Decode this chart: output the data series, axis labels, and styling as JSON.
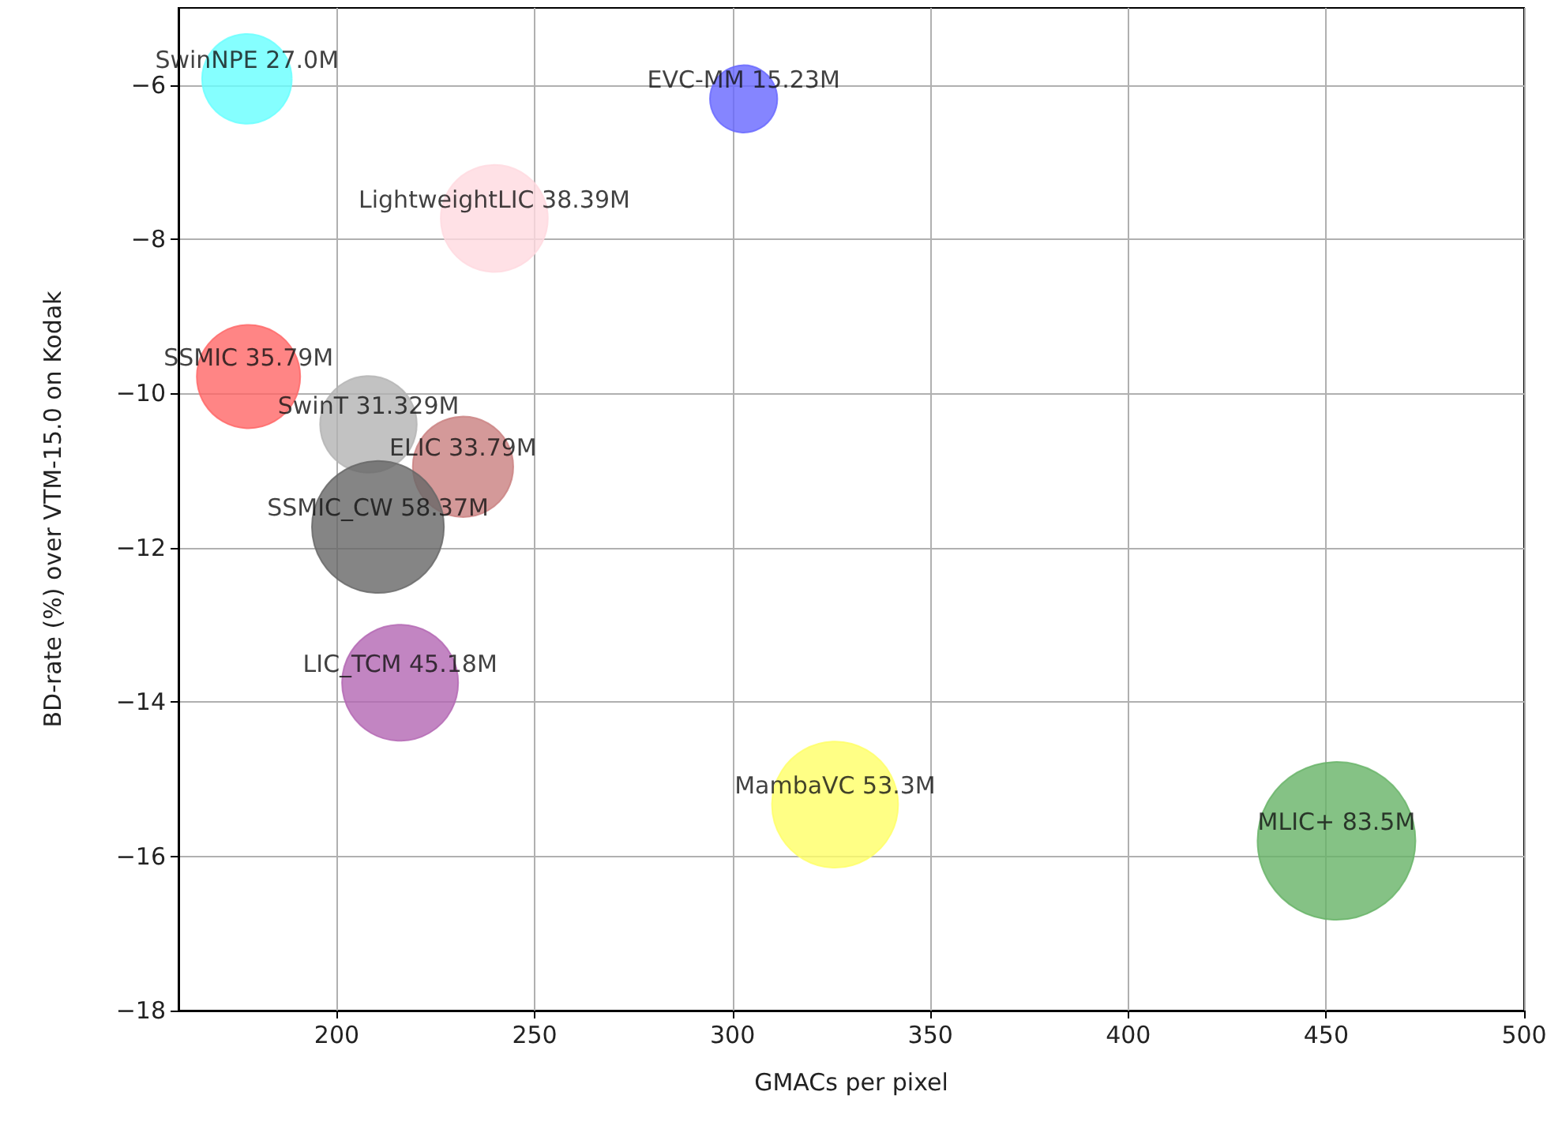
{
  "chart_data": {
    "type": "bubble",
    "xlabel": "GMACs per pixel",
    "ylabel": "BD-rate (%) over VTM-15.0 on Kodak",
    "x": [
      177.3,
      302.8,
      239.8,
      177.7,
      208,
      231.9,
      210.4,
      216,
      325.9,
      452.6
    ],
    "values": [
      -5.92,
      -6.18,
      -7.73,
      -9.78,
      -10.4,
      -10.95,
      -11.73,
      -13.75,
      -15.33,
      -15.8
    ],
    "sizes": [
      0.323,
      0.182,
      0.46,
      0.429,
      0.375,
      0.405,
      0.699,
      0.541,
      0.638,
      1
    ],
    "colors": [
      "#66ffff",
      "#6666ff",
      "#ffd9e0",
      "#ff6666",
      "#b3b3b3",
      "#c97f7f",
      "#666666",
      "#b366b3",
      "#ffff66",
      "#66b366"
    ],
    "annotations": [
      {
        "text": "SwinNPE 27.0M",
        "x": 177.3,
        "y": -5.92
      },
      {
        "text": "EVC-MM 15.23M",
        "x": 302.8,
        "y": -6.18
      },
      {
        "text": "LightweightLIC 38.39M",
        "x": 239.8,
        "y": -7.73
      },
      {
        "text": "SSMIC 35.79M",
        "x": 177.7,
        "y": -9.78
      },
      {
        "text": "SwinT 31.329M",
        "x": 208,
        "y": -10.4
      },
      {
        "text": "ELIC 33.79M",
        "x": 231.9,
        "y": -10.95
      },
      {
        "text": "SSMIC_CW 58.37M",
        "x": 210.4,
        "y": -11.73
      },
      {
        "text": "LIC_TCM 45.18M",
        "x": 216,
        "y": -13.75
      },
      {
        "text": "MambaVC 53.3M",
        "x": 325.9,
        "y": -15.33
      },
      {
        "text": "MLIC+ 83.5M",
        "x": 452.6,
        "y": -15.8
      }
    ],
    "xlim": [
      160,
      500
    ],
    "xticks": [
      200,
      250,
      300,
      350,
      400,
      450,
      500
    ],
    "ylim": [
      -18,
      -5
    ],
    "yticks": [
      -18,
      -16,
      -14,
      -12,
      -10,
      -8,
      -6
    ],
    "grid": true,
    "marker": "circle"
  }
}
